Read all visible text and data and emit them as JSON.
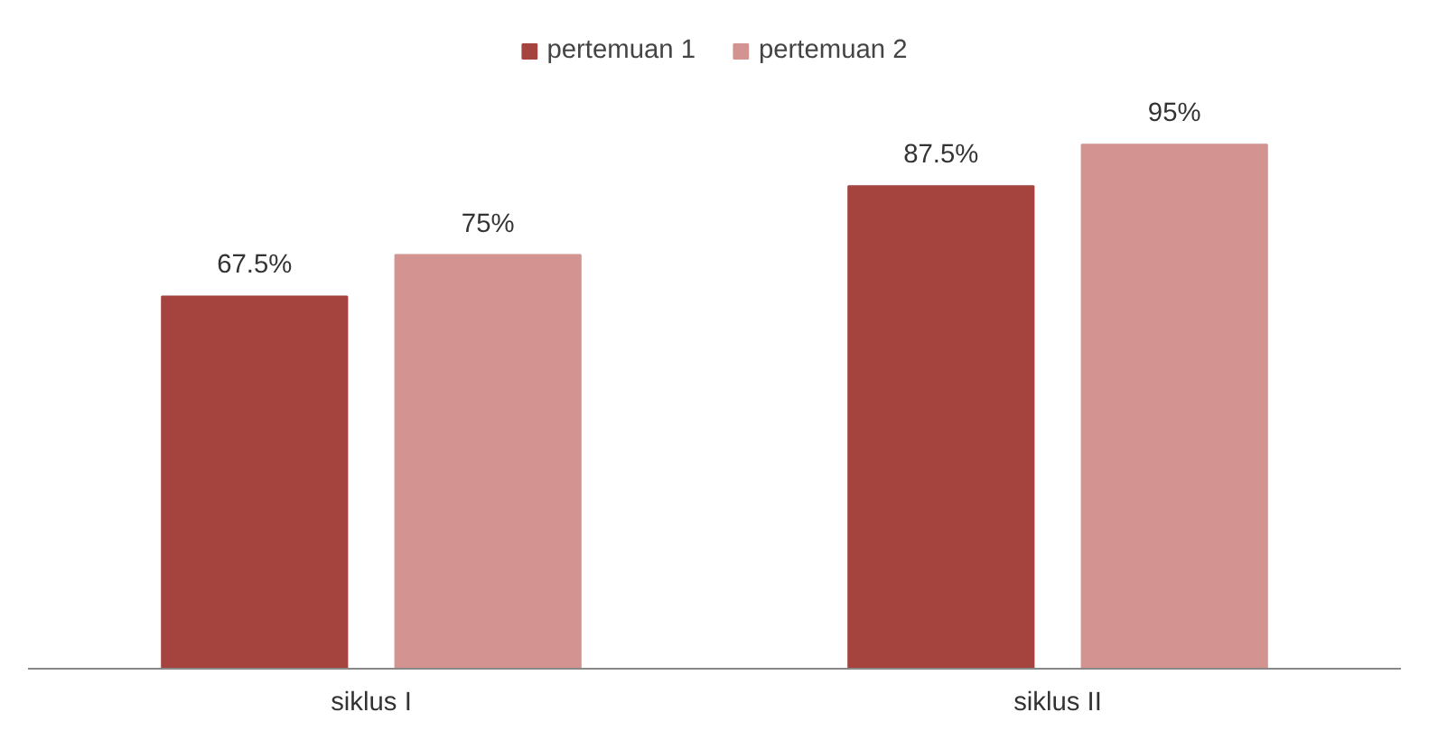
{
  "chart_data": {
    "type": "bar",
    "categories": [
      "siklus I",
      "siklus II"
    ],
    "series": [
      {
        "name": "pertemuan 1",
        "color": "#a5443f",
        "values": [
          67.5,
          87.5
        ],
        "value_labels": [
          "67.5%",
          "87.5%"
        ]
      },
      {
        "name": "pertemuan 2",
        "color": "#d39391",
        "values": [
          75,
          95
        ],
        "value_labels": [
          "75%",
          "95%"
        ]
      }
    ],
    "tick_labels": "x",
    "grid": false,
    "legend": "top"
  }
}
